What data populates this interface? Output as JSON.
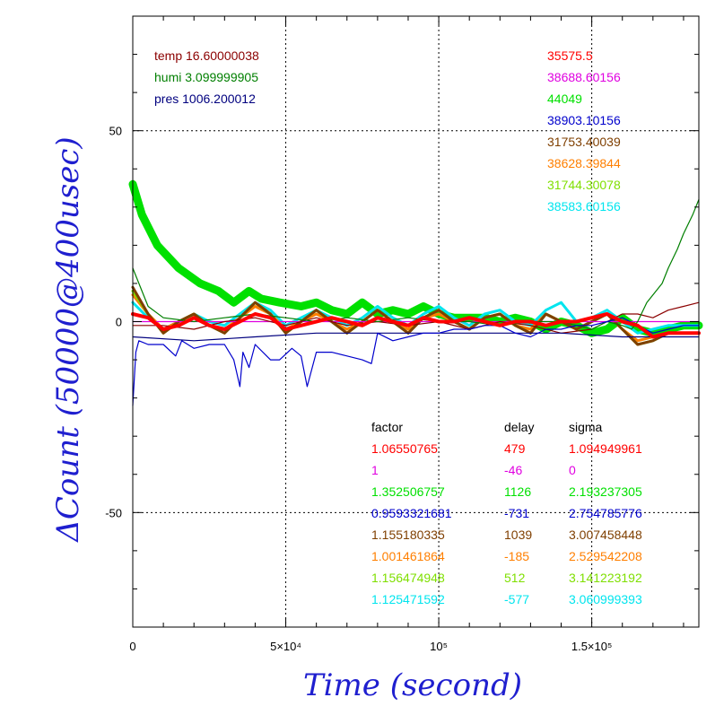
{
  "chart_data": {
    "type": "line",
    "xlabel": "Time (second)",
    "ylabel": "ΔCount (50000@400usec)",
    "xlim": [
      0,
      185000
    ],
    "ylim": [
      -80,
      80
    ],
    "grid": true,
    "x_ticks": [
      {
        "value": 0,
        "label": "0"
      },
      {
        "value": 50000,
        "label": "5×10⁴"
      },
      {
        "value": 100000,
        "label": "10⁵"
      },
      {
        "value": 150000,
        "label": "1.5×10⁵"
      }
    ],
    "y_ticks": [
      {
        "value": 50,
        "label": "50"
      },
      {
        "value": 0,
        "label": "0"
      },
      {
        "value": -50,
        "label": "-50"
      }
    ],
    "env_legend": [
      {
        "text": "temp 16.60000038",
        "color": "#8b0000"
      },
      {
        "text": "humi 3.099999905",
        "color": "#007f00"
      },
      {
        "text": "pres 1006.200012",
        "color": "#00007f"
      }
    ],
    "count_legend": [
      {
        "text": "35575.5",
        "color": "#ff0000"
      },
      {
        "text": "38688.60156",
        "color": "#e000e0"
      },
      {
        "text": "44049",
        "color": "#00e000"
      },
      {
        "text": "38903.10156",
        "color": "#0000cc"
      },
      {
        "text": "31753.40039",
        "color": "#7f3f00"
      },
      {
        "text": "38628.39844",
        "color": "#ff7f00"
      },
      {
        "text": "31744.30078",
        "color": "#7fdf00"
      },
      {
        "text": "38583.60156",
        "color": "#00e5ee"
      }
    ],
    "table": {
      "headers": [
        "factor",
        "delay",
        "sigma"
      ],
      "rows": [
        {
          "factor": "1.06550765",
          "delay": "479",
          "sigma": "1.094949961",
          "color": "#ff0000"
        },
        {
          "factor": "1",
          "delay": "-46",
          "sigma": "0",
          "color": "#e000e0"
        },
        {
          "factor": "1.352506757",
          "delay": "1126",
          "sigma": "2.193237305",
          "color": "#00e000"
        },
        {
          "factor": "0.9593321681",
          "delay": "-731",
          "sigma": "2.754785776",
          "color": "#0000cc"
        },
        {
          "factor": "1.155180335",
          "delay": "1039",
          "sigma": "3.007458448",
          "color": "#7f3f00"
        },
        {
          "factor": "1.001461864",
          "delay": "-185",
          "sigma": "2.529542208",
          "color": "#ff7f00"
        },
        {
          "factor": "1.156474948",
          "delay": "512",
          "sigma": "3.141223192",
          "color": "#7fdf00"
        },
        {
          "factor": "1.125471592",
          "delay": "-577",
          "sigma": "3.060999393",
          "color": "#00e5ee"
        }
      ]
    },
    "series": [
      {
        "name": "35575.5",
        "color": "#ff0000",
        "x": [
          0,
          5000,
          10000,
          15000,
          20000,
          25000,
          30000,
          35000,
          40000,
          45000,
          50000,
          55000,
          60000,
          65000,
          70000,
          75000,
          80000,
          85000,
          90000,
          95000,
          100000,
          105000,
          110000,
          115000,
          120000,
          125000,
          130000,
          135000,
          140000,
          145000,
          150000,
          155000,
          160000,
          165000,
          170000,
          175000,
          180000,
          185000
        ],
        "y": [
          2,
          1,
          -2,
          -1,
          1,
          -1,
          -2,
          0,
          2,
          1,
          -2,
          -1,
          0,
          1,
          0,
          -1,
          1,
          0,
          -1,
          1,
          0,
          0,
          1,
          0,
          -1,
          0,
          0,
          -1,
          0,
          0,
          1,
          2,
          0,
          -1,
          -4,
          -3,
          -3,
          -3
        ]
      },
      {
        "name": "38688.60156",
        "color": "#e000e0",
        "x": [
          0,
          185000
        ],
        "y": [
          0,
          0
        ]
      },
      {
        "name": "44049",
        "color": "#00e000",
        "x": [
          0,
          3000,
          8000,
          15000,
          22000,
          28000,
          33000,
          38000,
          42000,
          48000,
          55000,
          60000,
          65000,
          70000,
          75000,
          80000,
          85000,
          90000,
          95000,
          100000,
          105000,
          110000,
          115000,
          120000,
          125000,
          130000,
          135000,
          140000,
          145000,
          150000,
          155000,
          160000,
          165000,
          170000,
          175000,
          180000,
          185000
        ],
        "y": [
          36,
          28,
          20,
          14,
          10,
          8,
          5,
          8,
          6,
          5,
          4,
          5,
          3,
          2,
          5,
          2,
          3,
          2,
          4,
          2,
          1,
          1,
          1,
          0,
          1,
          0,
          -2,
          0,
          -1,
          -3,
          -2,
          1,
          -2,
          -3,
          -2,
          -1,
          -1
        ]
      },
      {
        "name": "38903.10156",
        "color": "#0000cc",
        "x": [
          0,
          1000,
          2000,
          5000,
          10000,
          14000,
          16000,
          20000,
          25000,
          30000,
          33000,
          35000,
          36000,
          38000,
          40000,
          45000,
          48000,
          52000,
          55000,
          57000,
          60000,
          65000,
          70000,
          75000,
          78000,
          80000,
          85000,
          90000,
          95000,
          100000,
          105000,
          110000,
          115000,
          120000,
          125000,
          130000,
          135000,
          140000,
          145000,
          150000,
          155000,
          160000,
          165000,
          170000,
          175000,
          180000,
          185000
        ],
        "y": [
          -22,
          -8,
          -5,
          -6,
          -6,
          -9,
          -5,
          -7,
          -6,
          -6,
          -10,
          -17,
          -8,
          -12,
          -6,
          -10,
          -10,
          -7,
          -9,
          -17,
          -8,
          -8,
          -9,
          -10,
          -11,
          -3,
          -5,
          -4,
          -3,
          -3,
          -2,
          -2,
          -1,
          -1,
          -3,
          -4,
          -2,
          -2,
          -1,
          -1,
          0,
          1,
          -1,
          -3,
          -2,
          -1,
          -1
        ]
      },
      {
        "name": "31753.40039",
        "color": "#7f3f00",
        "x": [
          0,
          5000,
          10000,
          15000,
          20000,
          25000,
          30000,
          35000,
          40000,
          45000,
          50000,
          55000,
          60000,
          65000,
          70000,
          75000,
          80000,
          85000,
          90000,
          95000,
          100000,
          105000,
          110000,
          115000,
          120000,
          125000,
          130000,
          135000,
          140000,
          145000,
          150000,
          155000,
          160000,
          165000,
          170000,
          175000,
          180000,
          185000
        ],
        "y": [
          9,
          2,
          -3,
          0,
          2,
          -1,
          -3,
          1,
          5,
          2,
          -3,
          0,
          3,
          0,
          -3,
          0,
          3,
          0,
          -3,
          1,
          3,
          0,
          -2,
          1,
          2,
          -1,
          -3,
          2,
          0,
          -2,
          0,
          2,
          -2,
          -6,
          -5,
          -3,
          -3,
          -3
        ]
      },
      {
        "name": "38628.39844",
        "color": "#ff7f00",
        "x": [
          0,
          5000,
          10000,
          15000,
          20000,
          25000,
          30000,
          35000,
          40000,
          45000,
          50000,
          55000,
          60000,
          65000,
          70000,
          75000,
          80000,
          85000,
          90000,
          95000,
          100000,
          105000,
          110000,
          115000,
          120000,
          125000,
          130000,
          135000,
          140000,
          145000,
          150000,
          155000,
          160000,
          165000,
          170000,
          175000,
          180000,
          185000
        ],
        "y": [
          7,
          2,
          -2,
          0,
          2,
          -1,
          -2,
          1,
          4,
          2,
          -2,
          0,
          2,
          0,
          -2,
          0,
          3,
          0,
          -2,
          1,
          2,
          0,
          -2,
          1,
          2,
          -1,
          -2,
          2,
          0,
          -2,
          0,
          2,
          -2,
          -5,
          -4,
          -3,
          -3,
          -3
        ]
      },
      {
        "name": "31744.30078",
        "color": "#7fdf00",
        "x": [
          0,
          5000,
          10000,
          15000,
          20000,
          25000,
          30000,
          35000,
          40000,
          45000,
          50000,
          55000,
          60000,
          65000,
          70000,
          75000,
          80000,
          85000,
          90000,
          95000,
          100000,
          105000,
          110000,
          115000,
          120000,
          125000,
          130000,
          135000,
          140000,
          145000,
          150000,
          155000,
          160000,
          165000,
          170000,
          175000,
          180000,
          185000
        ],
        "y": [
          8,
          2,
          -3,
          0,
          2,
          -1,
          -3,
          1,
          5,
          2,
          -3,
          0,
          3,
          0,
          -3,
          0,
          3,
          0,
          -3,
          1,
          3,
          0,
          -2,
          1,
          2,
          -1,
          -3,
          2,
          0,
          -2,
          0,
          2,
          -2,
          -6,
          -5,
          -3,
          -3,
          -3
        ]
      },
      {
        "name": "38583.60156",
        "color": "#00e5ee",
        "x": [
          0,
          5000,
          10000,
          15000,
          20000,
          25000,
          30000,
          35000,
          40000,
          45000,
          50000,
          55000,
          60000,
          65000,
          70000,
          75000,
          80000,
          85000,
          90000,
          95000,
          100000,
          105000,
          110000,
          115000,
          120000,
          125000,
          130000,
          135000,
          140000,
          145000,
          150000,
          155000,
          160000,
          165000,
          170000,
          175000,
          180000,
          185000
        ],
        "y": [
          5,
          1,
          -2,
          0,
          2,
          0,
          -1,
          2,
          5,
          3,
          -1,
          1,
          3,
          1,
          -1,
          1,
          4,
          1,
          -1,
          2,
          4,
          1,
          -1,
          2,
          3,
          0,
          -1,
          3,
          5,
          0,
          1,
          3,
          0,
          -3,
          -2,
          -1,
          -1,
          -1
        ]
      },
      {
        "name": "temp 16.60000038",
        "color": "#8b0000",
        "x": [
          0,
          10000,
          20000,
          30000,
          40000,
          50000,
          60000,
          70000,
          80000,
          90000,
          100000,
          110000,
          120000,
          130000,
          140000,
          150000,
          155000,
          160000,
          165000,
          170000,
          175000,
          180000,
          185000
        ],
        "y": [
          -1,
          -1,
          -2,
          0,
          1,
          -1,
          1,
          -1,
          0,
          -1,
          0,
          -2,
          0,
          -1,
          -3,
          -2,
          0,
          2,
          2,
          1,
          3,
          4,
          5
        ]
      },
      {
        "name": "humi 3.099999905",
        "color": "#007f00",
        "x": [
          0,
          5000,
          10000,
          20000,
          30000,
          40000,
          50000,
          60000,
          70000,
          80000,
          90000,
          100000,
          110000,
          120000,
          130000,
          140000,
          150000,
          155000,
          160000,
          163000,
          165000,
          168000,
          170000,
          173000,
          175000,
          178000,
          180000,
          183000,
          185000
        ],
        "y": [
          14,
          4,
          1,
          0,
          1,
          2,
          1,
          0,
          1,
          0,
          1,
          0,
          0,
          -1,
          0,
          0,
          -2,
          0,
          -1,
          -2,
          0,
          5,
          7,
          10,
          14,
          19,
          23,
          28,
          32
        ]
      },
      {
        "name": "pres 1006.200012",
        "color": "#00007f",
        "x": [
          0,
          20000,
          40000,
          60000,
          80000,
          100000,
          120000,
          140000,
          160000,
          185000
        ],
        "y": [
          -4,
          -5,
          -4,
          -3,
          -3,
          -3,
          -3,
          -3,
          -4,
          -4
        ]
      }
    ]
  }
}
